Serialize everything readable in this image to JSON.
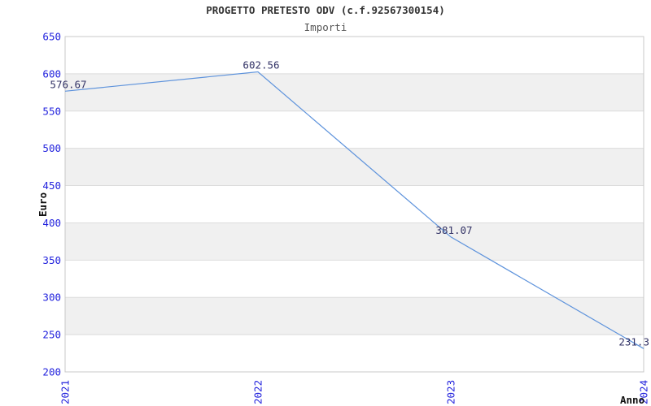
{
  "header": {
    "title": "PROGETTO PRETESTO ODV (c.f.92567300154)",
    "subtitle": "Importi"
  },
  "chart_data": {
    "type": "line",
    "title": "PROGETTO PRETESTO ODV (c.f.92567300154)",
    "subtitle": "Importi",
    "xlabel": "Anno",
    "ylabel": "Euro",
    "categories": [
      "2021",
      "2022",
      "2023",
      "2024"
    ],
    "series": [
      {
        "name": "Importi",
        "values": [
          576.67,
          602.56,
          381.07,
          231.3
        ]
      }
    ],
    "data_labels": [
      "576.67",
      "602.56",
      "381.07",
      "231.3"
    ],
    "ylim": [
      200,
      650
    ],
    "ytick_step": 50,
    "yticks": [
      200,
      250,
      300,
      350,
      400,
      450,
      500,
      550,
      600,
      650
    ],
    "grid": "horizontal",
    "banded_background": true,
    "legend_position": "none",
    "colors": {
      "line": "#5e93dc",
      "tick_labels": "#2222dd",
      "data_labels": "#333366",
      "band": "#f0f0f0",
      "gridline": "#dcdcdc",
      "plot_border": "#c9c9c9",
      "title": "#333333",
      "subtitle": "#555555",
      "axis_titles": "#111111",
      "background": "#ffffff"
    }
  }
}
